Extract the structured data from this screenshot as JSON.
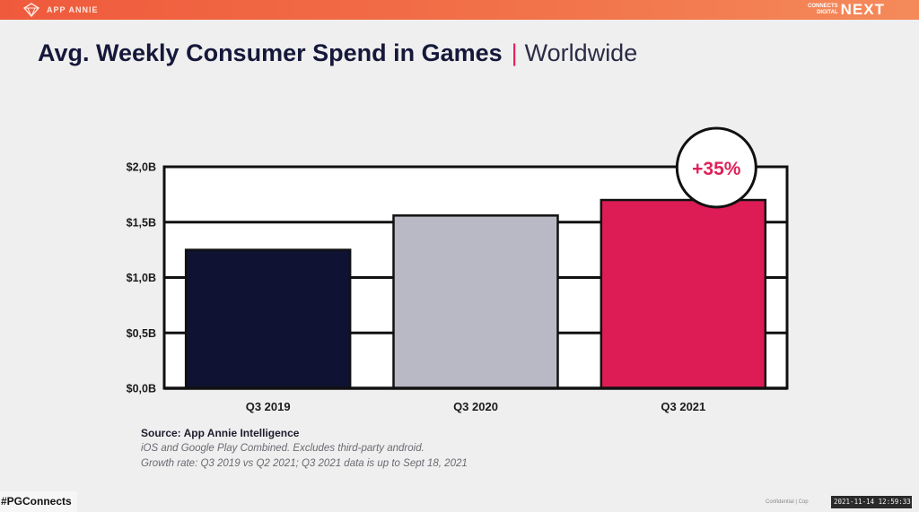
{
  "header": {
    "brand": "APP ANNIE",
    "partner_small": "CONNECTS DIGITAL",
    "partner_big": "NEXT"
  },
  "title": {
    "main": "Avg. Weekly Consumer Spend in Games",
    "separator": "|",
    "region": "Worldwide"
  },
  "chart_data": {
    "type": "bar",
    "title": "Avg. Weekly Consumer Spend in Games | Worldwide",
    "categories": [
      "Q3 2019",
      "Q3 2020",
      "Q3 2021"
    ],
    "values": [
      1.25,
      1.56,
      1.7
    ],
    "colors": [
      "#0f1232",
      "#b9b9c6",
      "#dd1b55"
    ],
    "y_ticks": [
      0,
      0.5,
      1.0,
      1.5,
      2.0
    ],
    "y_tick_labels": [
      "$0,0B",
      "$0,5B",
      "$1,0B",
      "$1,5B",
      "$2,0B"
    ],
    "ylim": [
      0,
      2.0
    ],
    "grid": true,
    "annotation": "+35%"
  },
  "source": {
    "heading": "Source: App Annie Intelligence",
    "line1": "iOS and Google Play Combined. Excludes third-party android.",
    "line2": "Growth rate: Q3 2019 vs Q2 2021; Q3 2021 data is up to Sept 18, 2021"
  },
  "footer": {
    "hashtag": "#PGConnects",
    "confidential": "Confidential | Cop",
    "timestamp": "2021-11-14 12:59:33"
  }
}
